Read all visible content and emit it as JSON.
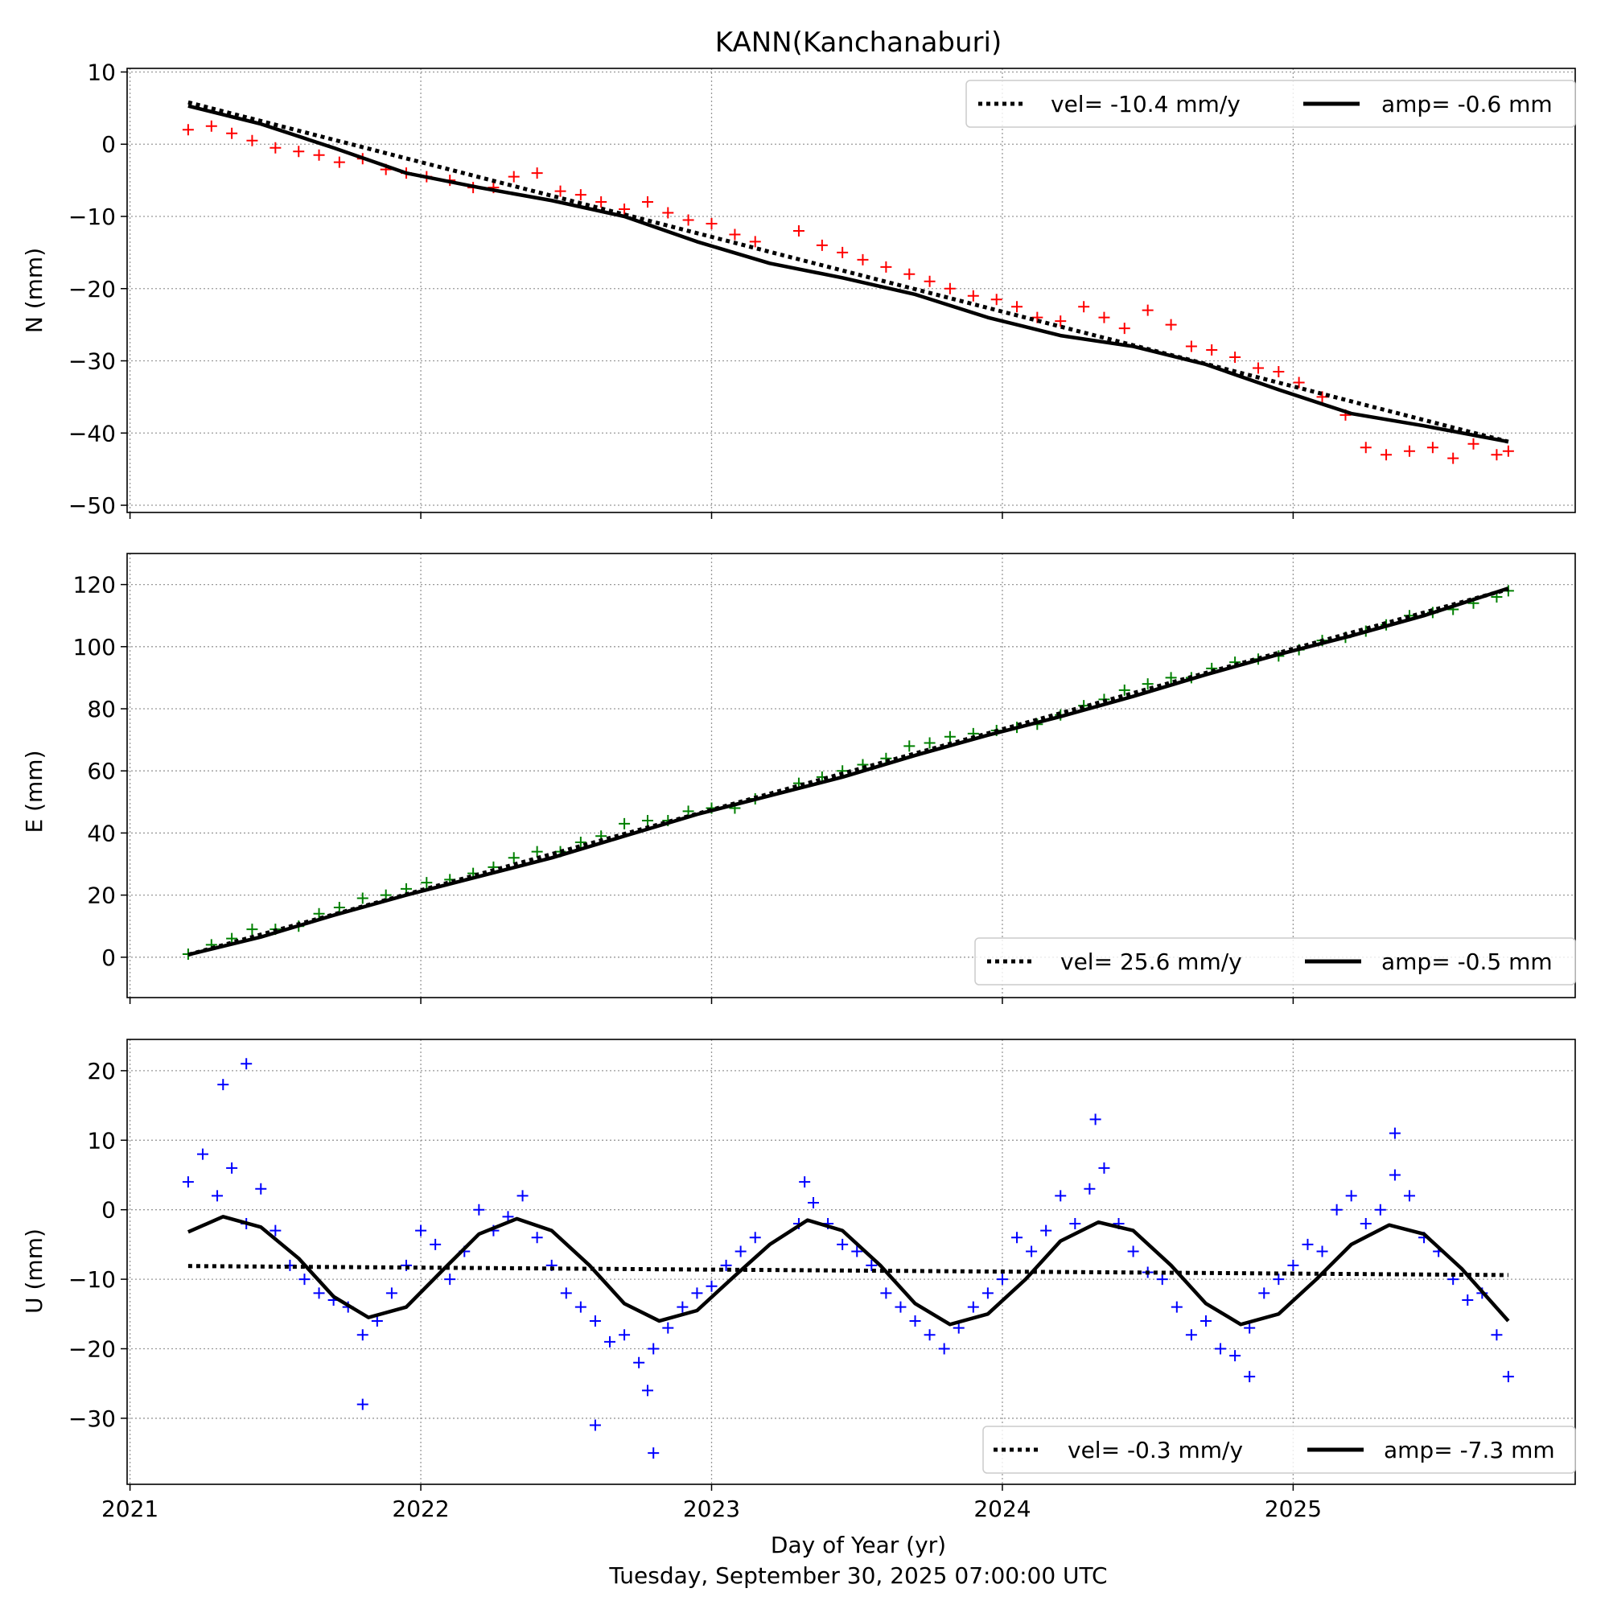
{
  "figure": {
    "title": "KANN(Kanchanaburi)",
    "xlabel": "Day of Year (yr)",
    "subtitle": "Tuesday, September 30, 2025 07:00:00 UTC",
    "x_tick_labels": [
      "2021",
      "2022",
      "2023",
      "2024",
      "2025"
    ]
  },
  "chart_data": [
    {
      "type": "scatter",
      "panel": "N",
      "ylabel": "N (mm)",
      "color": "#ff0000",
      "marker": "plus",
      "xlim": [
        2020.99,
        2025.97
      ],
      "ylim": [
        -51,
        10.5
      ],
      "yticks": [
        10,
        0,
        -10,
        -20,
        -30,
        -40,
        -50
      ],
      "ytick_labels": [
        "10",
        "0",
        "−10",
        "−20",
        "−30",
        "−40",
        "−50"
      ],
      "grid": true,
      "legend_position": "upper right",
      "legend": {
        "velocity_label": "vel= -10.4 mm/y",
        "amplitude_label": "amp= -0.6 mm"
      },
      "series": {
        "x": [
          2021.2,
          2021.28,
          2021.35,
          2021.42,
          2021.5,
          2021.58,
          2021.65,
          2021.72,
          2021.8,
          2021.88,
          2021.95,
          2022.02,
          2022.1,
          2022.18,
          2022.25,
          2022.32,
          2022.4,
          2022.48,
          2022.55,
          2022.62,
          2022.7,
          2022.78,
          2022.85,
          2022.92,
          2023.0,
          2023.08,
          2023.15,
          2023.3,
          2023.38,
          2023.45,
          2023.52,
          2023.6,
          2023.68,
          2023.75,
          2023.82,
          2023.9,
          2023.98,
          2024.05,
          2024.12,
          2024.2,
          2024.28,
          2024.35,
          2024.42,
          2024.5,
          2024.58,
          2024.65,
          2024.72,
          2024.8,
          2024.88,
          2024.95,
          2025.02,
          2025.1,
          2025.18,
          2025.25,
          2025.32,
          2025.4,
          2025.48,
          2025.55,
          2025.62,
          2025.7,
          2025.74
        ],
        "y": [
          2.0,
          2.5,
          1.5,
          0.5,
          -0.5,
          -1.0,
          -1.5,
          -2.5,
          -2.0,
          -3.5,
          -4.0,
          -4.5,
          -5.0,
          -6.0,
          -6.0,
          -4.5,
          -4.0,
          -6.5,
          -7.0,
          -8.0,
          -9.0,
          -8.0,
          -9.5,
          -10.5,
          -11.0,
          -12.5,
          -13.5,
          -12.0,
          -14.0,
          -15.0,
          -16.0,
          -17.0,
          -18.0,
          -19.0,
          -20.0,
          -21.0,
          -21.5,
          -22.5,
          -24.0,
          -24.5,
          -22.5,
          -24.0,
          -25.5,
          -23.0,
          -25.0,
          -28.0,
          -28.5,
          -29.5,
          -31.0,
          -31.5,
          -33.0,
          -35.0,
          -37.5,
          -42.0,
          -43.0,
          -42.5,
          -42.0,
          -43.5,
          -41.5,
          -43.0,
          -42.5
        ]
      },
      "velocity_fit": {
        "x": [
          2021.2,
          2025.74
        ],
        "y": [
          5.8,
          -41.2
        ]
      },
      "amplitude_fit": {
        "x": [
          2021.2,
          2021.45,
          2021.7,
          2021.95,
          2022.2,
          2022.45,
          2022.7,
          2022.95,
          2023.2,
          2023.45,
          2023.7,
          2023.95,
          2024.2,
          2024.45,
          2024.7,
          2024.95,
          2025.2,
          2025.45,
          2025.74
        ],
        "y": [
          5.3,
          2.8,
          -0.5,
          -4.0,
          -6.0,
          -7.8,
          -10.0,
          -13.5,
          -16.5,
          -18.5,
          -20.8,
          -24.0,
          -26.5,
          -28.0,
          -30.5,
          -34.0,
          -37.3,
          -39.0,
          -41.2
        ]
      }
    },
    {
      "type": "scatter",
      "panel": "E",
      "ylabel": "E (mm)",
      "color": "#008000",
      "marker": "plus",
      "xlim": [
        2020.99,
        2025.97
      ],
      "ylim": [
        -13,
        130
      ],
      "yticks": [
        120,
        100,
        80,
        60,
        40,
        20,
        0
      ],
      "ytick_labels": [
        "120",
        "100",
        "80",
        "60",
        "40",
        "20",
        "0"
      ],
      "grid": true,
      "legend_position": "lower right",
      "legend": {
        "velocity_label": "vel= 25.6 mm/y",
        "amplitude_label": "amp= -0.5 mm"
      },
      "series": {
        "x": [
          2021.2,
          2021.28,
          2021.35,
          2021.42,
          2021.5,
          2021.58,
          2021.65,
          2021.72,
          2021.8,
          2021.88,
          2021.95,
          2022.02,
          2022.1,
          2022.18,
          2022.25,
          2022.32,
          2022.4,
          2022.48,
          2022.55,
          2022.62,
          2022.7,
          2022.78,
          2022.85,
          2022.92,
          2023.0,
          2023.08,
          2023.15,
          2023.3,
          2023.38,
          2023.45,
          2023.52,
          2023.6,
          2023.68,
          2023.75,
          2023.82,
          2023.9,
          2023.98,
          2024.05,
          2024.12,
          2024.2,
          2024.28,
          2024.35,
          2024.42,
          2024.5,
          2024.58,
          2024.65,
          2024.72,
          2024.8,
          2024.88,
          2024.95,
          2025.02,
          2025.1,
          2025.18,
          2025.25,
          2025.32,
          2025.4,
          2025.48,
          2025.55,
          2025.62,
          2025.7,
          2025.74
        ],
        "y": [
          1.0,
          4.0,
          6.0,
          9.0,
          9.0,
          10.0,
          14.0,
          16.0,
          19.0,
          20.0,
          22.0,
          24.0,
          25.0,
          27.0,
          29.0,
          32.0,
          34.0,
          34.0,
          37.0,
          39.0,
          43.0,
          44.0,
          44.0,
          47.0,
          48.0,
          48.0,
          51.0,
          56.0,
          58.0,
          60.0,
          62.0,
          64.0,
          68.0,
          69.0,
          71.0,
          72.0,
          73.0,
          74.0,
          75.0,
          78.0,
          81.0,
          83.0,
          86.0,
          88.0,
          90.0,
          90.0,
          93.0,
          95.0,
          96.0,
          97.0,
          99.0,
          102.0,
          103.0,
          105.0,
          107.0,
          110.0,
          111.0,
          112.0,
          114.0,
          116.0,
          118.0
        ]
      },
      "velocity_fit": {
        "x": [
          2021.2,
          2025.74
        ],
        "y": [
          0.8,
          118.5
        ]
      },
      "amplitude_fit": {
        "x": [
          2021.2,
          2021.45,
          2021.7,
          2021.95,
          2022.2,
          2022.45,
          2022.7,
          2022.95,
          2023.2,
          2023.45,
          2023.7,
          2023.95,
          2024.2,
          2024.45,
          2024.7,
          2024.95,
          2025.2,
          2025.45,
          2025.74
        ],
        "y": [
          0.8,
          6.5,
          13.5,
          20.0,
          26.0,
          32.0,
          39.0,
          46.0,
          52.0,
          58.0,
          65.0,
          71.5,
          77.5,
          84.0,
          91.0,
          97.5,
          103.5,
          110.0,
          118.8
        ]
      }
    },
    {
      "type": "scatter",
      "panel": "U",
      "ylabel": "U (mm)",
      "color": "#0000ff",
      "marker": "plus",
      "xlim": [
        2020.99,
        2025.97
      ],
      "ylim": [
        -39.5,
        24.5
      ],
      "yticks": [
        20,
        10,
        0,
        -10,
        -20,
        -30
      ],
      "ytick_labels": [
        "20",
        "10",
        "0",
        "−10",
        "−20",
        "−30"
      ],
      "grid": true,
      "legend_position": "lower right",
      "legend": {
        "velocity_label": "vel= -0.3 mm/y",
        "amplitude_label": "amp= -7.3 mm"
      },
      "series": {
        "x": [
          2021.2,
          2021.25,
          2021.3,
          2021.35,
          2021.4,
          2021.45,
          2021.5,
          2021.55,
          2021.6,
          2021.65,
          2021.7,
          2021.75,
          2021.8,
          2021.85,
          2021.9,
          2021.95,
          2022.0,
          2022.05,
          2022.1,
          2022.15,
          2022.2,
          2022.25,
          2022.3,
          2022.35,
          2022.4,
          2022.45,
          2022.5,
          2022.55,
          2022.6,
          2022.65,
          2022.7,
          2022.75,
          2022.8,
          2022.85,
          2022.9,
          2022.95,
          2023.0,
          2023.05,
          2023.1,
          2023.15,
          2023.3,
          2023.35,
          2023.4,
          2023.45,
          2023.5,
          2023.55,
          2023.6,
          2023.65,
          2023.7,
          2023.75,
          2023.8,
          2023.85,
          2023.9,
          2023.95,
          2024.0,
          2024.05,
          2024.1,
          2024.15,
          2024.2,
          2024.25,
          2024.3,
          2024.35,
          2024.4,
          2024.45,
          2024.5,
          2024.55,
          2024.6,
          2024.65,
          2024.7,
          2024.75,
          2024.8,
          2024.85,
          2024.9,
          2024.95,
          2025.0,
          2025.05,
          2025.1,
          2025.15,
          2025.2,
          2025.25,
          2025.3,
          2025.35,
          2025.4,
          2025.45,
          2025.5,
          2025.55,
          2025.6,
          2025.65,
          2025.7,
          2025.74,
          2021.32,
          2021.4,
          2022.6,
          2022.8,
          2023.32,
          2024.32,
          2025.35,
          2021.8,
          2022.78,
          2024.85
        ],
        "y": [
          4.0,
          8.0,
          2.0,
          6.0,
          -2.0,
          3.0,
          -3.0,
          -8.0,
          -10.0,
          -12.0,
          -13.0,
          -14.0,
          -18.0,
          -16.0,
          -12.0,
          -8.0,
          -3.0,
          -5.0,
          -10.0,
          -6.0,
          0.0,
          -3.0,
          -1.0,
          2.0,
          -4.0,
          -8.0,
          -12.0,
          -14.0,
          -16.0,
          -19.0,
          -18.0,
          -22.0,
          -20.0,
          -17.0,
          -14.0,
          -12.0,
          -11.0,
          -8.0,
          -6.0,
          -4.0,
          -2.0,
          1.0,
          -2.0,
          -5.0,
          -6.0,
          -8.0,
          -12.0,
          -14.0,
          -16.0,
          -18.0,
          -20.0,
          -17.0,
          -14.0,
          -12.0,
          -10.0,
          -4.0,
          -6.0,
          -3.0,
          2.0,
          -2.0,
          3.0,
          6.0,
          -2.0,
          -6.0,
          -9.0,
          -10.0,
          -14.0,
          -18.0,
          -16.0,
          -20.0,
          -21.0,
          -17.0,
          -12.0,
          -10.0,
          -8.0,
          -5.0,
          -6.0,
          0.0,
          2.0,
          -2.0,
          0.0,
          5.0,
          2.0,
          -4.0,
          -6.0,
          -10.0,
          -13.0,
          -12.0,
          -18.0,
          -24.0,
          18.0,
          21.0,
          -31.0,
          -35.0,
          4.0,
          13.0,
          11.0,
          -28.0,
          -26.0,
          -24.0
        ]
      },
      "velocity_fit": {
        "x": [
          2021.2,
          2025.74
        ],
        "y": [
          -8.1,
          -9.4
        ]
      },
      "amplitude_fit": {
        "x": [
          2021.2,
          2021.32,
          2021.45,
          2021.58,
          2021.7,
          2021.82,
          2021.95,
          2022.08,
          2022.2,
          2022.33,
          2022.45,
          2022.58,
          2022.7,
          2022.82,
          2022.95,
          2023.08,
          2023.2,
          2023.33,
          2023.45,
          2023.58,
          2023.7,
          2023.82,
          2023.95,
          2024.08,
          2024.2,
          2024.33,
          2024.45,
          2024.58,
          2024.7,
          2024.82,
          2024.95,
          2025.08,
          2025.2,
          2025.33,
          2025.45,
          2025.58,
          2025.74
        ],
        "y": [
          -3.2,
          -1.0,
          -2.5,
          -7.0,
          -12.5,
          -15.5,
          -14.0,
          -8.5,
          -3.5,
          -1.3,
          -3.0,
          -8.0,
          -13.5,
          -16.0,
          -14.5,
          -9.5,
          -5.0,
          -1.5,
          -3.0,
          -8.0,
          -13.5,
          -16.5,
          -15.0,
          -10.0,
          -4.5,
          -1.8,
          -3.0,
          -8.0,
          -13.5,
          -16.5,
          -15.0,
          -10.0,
          -5.0,
          -2.2,
          -3.5,
          -8.5,
          -16.0
        ]
      }
    }
  ]
}
